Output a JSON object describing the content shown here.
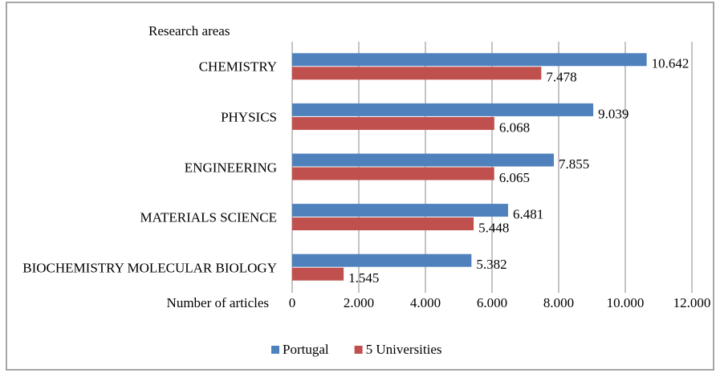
{
  "chart_data": {
    "type": "hbar",
    "title": "Research areas",
    "xlabel": "Number of articles",
    "categories": [
      "CHEMISTRY",
      "PHYSICS",
      "ENGINEERING",
      "MATERIALS SCIENCE",
      "BIOCHEMISTRY MOLECULAR BIOLOGY"
    ],
    "series": [
      {
        "name": "Portugal",
        "color": "#4f81bd",
        "values": [
          10642,
          9039,
          7855,
          6481,
          5382
        ],
        "value_labels": [
          "10.642",
          "9.039",
          "7.855",
          "6.481",
          "5.382"
        ]
      },
      {
        "name": "5 Universities",
        "color": "#c0504d",
        "values": [
          7478,
          6068,
          6065,
          5448,
          1545
        ],
        "value_labels": [
          "7.478",
          "6.068",
          "6.065",
          "5.448",
          "1.545"
        ]
      }
    ],
    "xlim": [
      0,
      12000
    ],
    "xticks": [
      0,
      {
        "value": 2000,
        "label": "2.000"
      },
      {
        "value": 4000,
        "label": "4.000"
      },
      {
        "value": 6000,
        "label": "6.000"
      },
      {
        "value": 8000,
        "label": "8.000"
      },
      {
        "value": 10000,
        "label": "10.000"
      },
      {
        "value": 12000,
        "label": "12.000"
      }
    ],
    "grid": true,
    "legend": "bottom"
  }
}
